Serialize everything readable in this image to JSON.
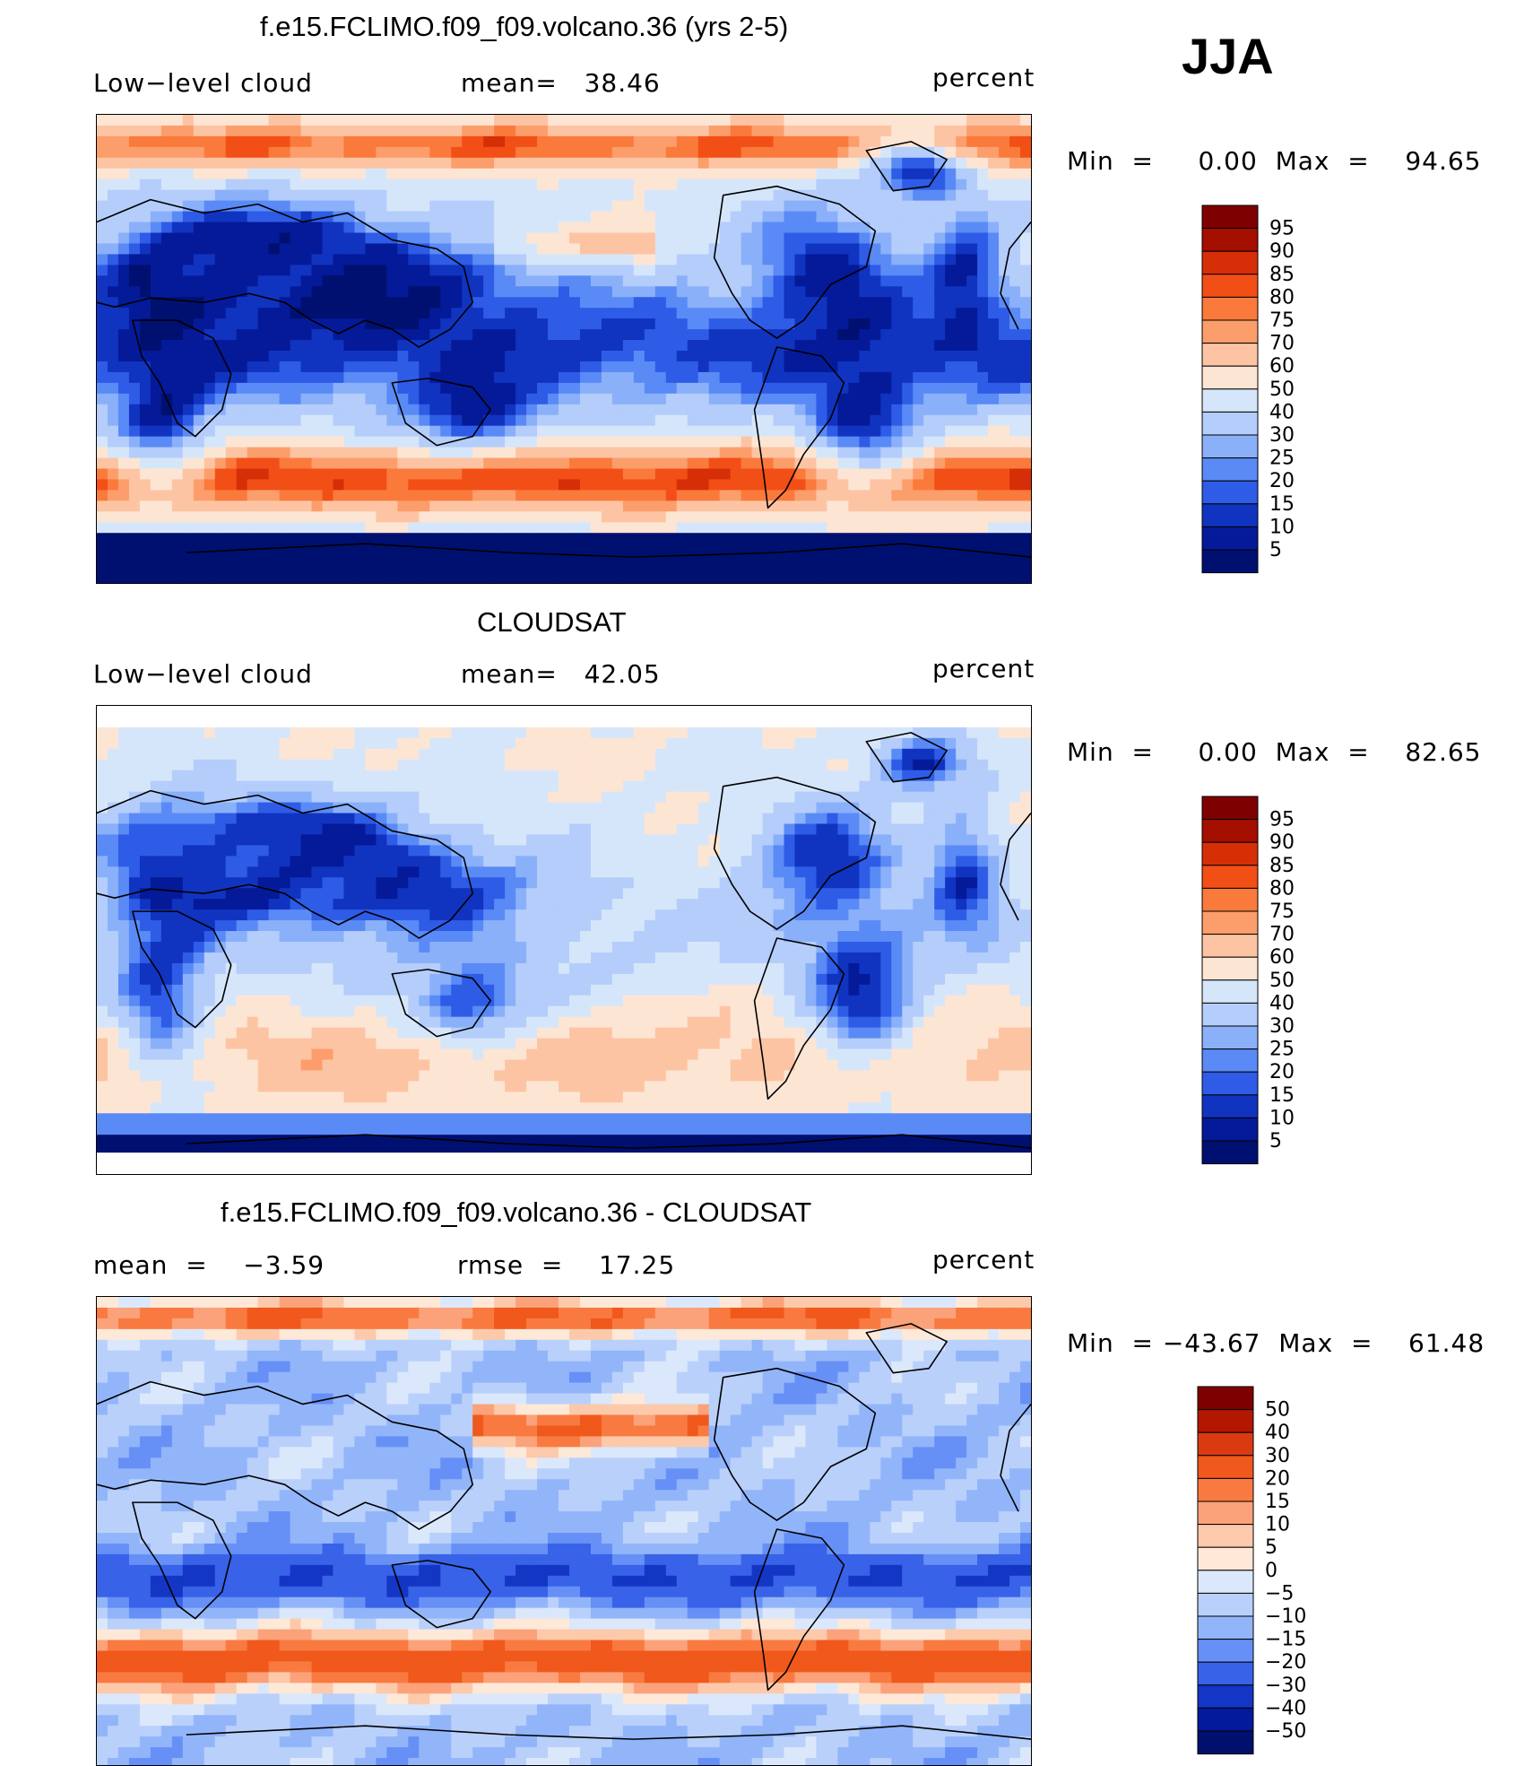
{
  "season": "JJA",
  "chart_data": [
    {
      "type": "heatmap",
      "title": "f.e15.FCLIMO.f09_f09.volcano.36 (yrs 2-5)",
      "variable": "Low−level cloud",
      "left_label": "Low−level cloud",
      "mid_label": "mean=   38.46",
      "units": "percent",
      "mean": 38.46,
      "minmax": "Min  =     0.00  Max  =    94.65",
      "min": 0.0,
      "max": 94.65,
      "levels": [
        "95",
        "90",
        "85",
        "80",
        "75",
        "70",
        "60",
        "50",
        "40",
        "30",
        "25",
        "20",
        "15",
        "10",
        "5"
      ],
      "colors": [
        "#7f0000",
        "#a50f00",
        "#d62f08",
        "#f24f17",
        "#fa7a3c",
        "#fc9e6b",
        "#fdc4a3",
        "#fde5d4",
        "#d6e6fa",
        "#b4cdfa",
        "#8ab0fa",
        "#5a8af5",
        "#2e5ce6",
        "#1034c0",
        "#051a99",
        "#001070"
      ],
      "x_extent": "0 to 360 longitude",
      "y_extent": "-90 to 90 latitude"
    },
    {
      "type": "heatmap",
      "title": "CLOUDSAT",
      "variable": "Low−level cloud",
      "left_label": "Low−level cloud",
      "mid_label": "mean=   42.05",
      "units": "percent",
      "mean": 42.05,
      "minmax": "Min  =     0.00  Max  =    82.65",
      "min": 0.0,
      "max": 82.65,
      "levels": [
        "95",
        "90",
        "85",
        "80",
        "75",
        "70",
        "60",
        "50",
        "40",
        "30",
        "25",
        "20",
        "15",
        "10",
        "5"
      ],
      "colors": [
        "#7f0000",
        "#a50f00",
        "#d62f08",
        "#f24f17",
        "#fa7a3c",
        "#fc9e6b",
        "#fdc4a3",
        "#fde5d4",
        "#d6e6fa",
        "#b4cdfa",
        "#8ab0fa",
        "#5a8af5",
        "#2e5ce6",
        "#1034c0",
        "#051a99",
        "#001070"
      ]
    },
    {
      "type": "heatmap",
      "title": "f.e15.FCLIMO.f09_f09.volcano.36 - CLOUDSAT",
      "left_label": "mean  =    −3.59",
      "mid_label": "rmse  =    17.25",
      "units": "percent",
      "mean": -3.59,
      "rmse": 17.25,
      "minmax": "Min  = −43.67  Max  =    61.48",
      "min": -43.67,
      "max": 61.48,
      "levels": [
        "50",
        "40",
        "30",
        "20",
        "15",
        "10",
        "5",
        "0",
        "−5",
        "−10",
        "−15",
        "−20",
        "−30",
        "−40",
        "−50"
      ],
      "colors": [
        "#7f0000",
        "#b31700",
        "#d93a10",
        "#f0581c",
        "#f97a40",
        "#fba27a",
        "#fdc9ab",
        "#fee8d8",
        "#dbe8fb",
        "#b9d0fb",
        "#92b5fa",
        "#6690f6",
        "#3862e8",
        "#1436c4",
        "#031a9c",
        "#00106c"
      ]
    }
  ]
}
